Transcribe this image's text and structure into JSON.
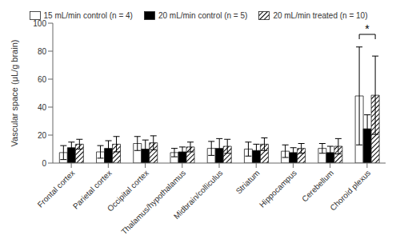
{
  "chart_data": {
    "type": "bar",
    "categories": [
      "Frontal cortex",
      "Parietal cortex",
      "Occipital cortex",
      "Thalamus/hypothalamus",
      "Midbrain/colliculus",
      "Striatum",
      "Hippocampus",
      "Cerebellum",
      "Choroid plexus"
    ],
    "series": [
      {
        "name": "15 mL/min control (n = 4)",
        "color": "#ffffff",
        "values": [
          7.5,
          8.0,
          14.0,
          7.5,
          10.5,
          10.0,
          8.5,
          10.5,
          48.0
        ],
        "errors": [
          5.0,
          4.5,
          5.0,
          3.0,
          5.0,
          5.0,
          4.5,
          3.5,
          35.0
        ]
      },
      {
        "name": "20 mL/min control (n = 5)",
        "color": "#000000",
        "values": [
          11.0,
          10.5,
          10.0,
          8.0,
          10.5,
          9.0,
          7.5,
          7.5,
          24.5
        ],
        "errors": [
          4.0,
          5.5,
          6.5,
          3.5,
          7.0,
          4.5,
          3.5,
          4.5,
          10.0
        ]
      },
      {
        "name": "20 mL/min treated (n = 10)",
        "color": "#ffffff",
        "values": [
          13.5,
          13.5,
          14.5,
          11.5,
          12.0,
          13.5,
          10.5,
          12.0,
          48.5
        ],
        "errors": [
          3.5,
          5.5,
          5.0,
          3.5,
          5.0,
          4.5,
          3.5,
          5.5,
          28.0
        ]
      }
    ],
    "ylabel": "Vascular space (μL/g brain)",
    "ylim": [
      0,
      100
    ],
    "yticks": [
      0,
      20,
      40,
      60,
      80,
      100
    ],
    "legend": "top",
    "annotations": [
      {
        "text": "*",
        "category": "Choroid plexus",
        "y": 92
      }
    ]
  }
}
